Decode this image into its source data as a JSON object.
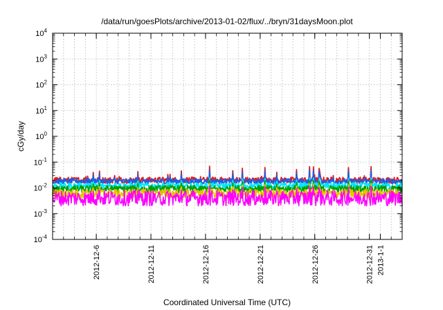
{
  "chart_data": {
    "type": "line",
    "title": "/data/run/goesPlots/archive/2013-01-02/flux/../bryn/31daysMoon.plot",
    "xlabel": "Coordinated Universal Time (UTC)",
    "ylabel": "cGy/day",
    "yscale": "log",
    "ylim_exponents": [
      -4,
      4
    ],
    "xlim": [
      "2012-12-02",
      "2013-01-03"
    ],
    "grid": true,
    "y_ticks": [
      {
        "base": "10",
        "exp": "-4"
      },
      {
        "base": "10",
        "exp": "-3"
      },
      {
        "base": "10",
        "exp": "-2"
      },
      {
        "base": "10",
        "exp": "-1"
      },
      {
        "base": "10",
        "exp": "0"
      },
      {
        "base": "10",
        "exp": "1"
      },
      {
        "base": "10",
        "exp": "2"
      },
      {
        "base": "10",
        "exp": "3"
      },
      {
        "base": "10",
        "exp": "4"
      }
    ],
    "x_ticks": [
      {
        "label": "2012-12-6",
        "day": 4
      },
      {
        "label": "2012-12-11",
        "day": 9
      },
      {
        "label": "2012-12-16",
        "day": 14
      },
      {
        "label": "2012-12-21",
        "day": 19
      },
      {
        "label": "2012-12-26",
        "day": 24
      },
      {
        "label": "2012-12-31",
        "day": 29
      },
      {
        "label": "2013-1-1",
        "day": 30
      }
    ],
    "series": [
      {
        "color": "#e41a1c",
        "typical": 0.02,
        "spread": 0.12,
        "spike_max": 0.07
      },
      {
        "color": "#1f5fe0",
        "typical": 0.018,
        "spread": 0.1,
        "spike_max": 0.05
      },
      {
        "color": "#00e5ff",
        "typical": 0.012,
        "spread": 0.12,
        "spike_max": 0.025
      },
      {
        "color": "#00a000",
        "typical": 0.009,
        "spread": 0.14,
        "spike_max": 0.02
      },
      {
        "color": "#e6c300",
        "typical": 0.006,
        "spread": 0.18,
        "spike_max": 0.015
      },
      {
        "color": "#ff00ff",
        "typical": 0.004,
        "spread": 0.3,
        "spike_max": 0.012
      }
    ]
  }
}
